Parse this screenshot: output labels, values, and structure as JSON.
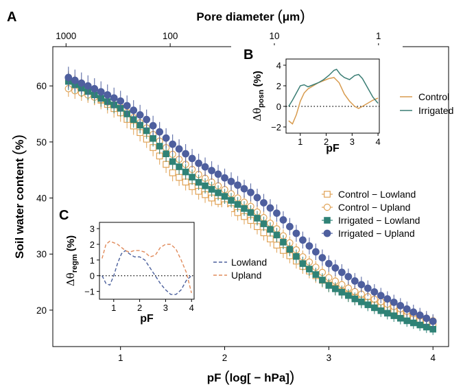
{
  "colors": {
    "control": "#E0A255",
    "irrigated_lowland": "#2F8276",
    "irrigated_upland": "#4E5F9E",
    "control_line": "#D89B4E",
    "irrigated_line": "#3A7D74",
    "lowland_dash": "#4A5F9C",
    "upland_dash": "#E08A5A",
    "zero_line": "#000000"
  },
  "chart_data": [
    {
      "panel": "A",
      "type": "scatter",
      "xlabel_pre": "pF",
      "xlabel_inner": "log[ − hPa]",
      "ylabel_pre": "Soil water content",
      "ylabel_inner": "%",
      "top_xlabel_pre": "Pore diameter",
      "top_xlabel_inner": "μm",
      "xlim": [
        0.35,
        4.15
      ],
      "ylim": [
        13.5,
        67
      ],
      "x_ticks": [
        1,
        2,
        3,
        4
      ],
      "x_tick_labels": [
        "1",
        "2",
        "3",
        "4"
      ],
      "y_ticks": [
        20,
        30,
        40,
        50,
        60
      ],
      "y_tick_labels": [
        "20",
        "30",
        "40",
        "50",
        "60"
      ],
      "top_ticks_pF": [
        0.477,
        1.477,
        2.477,
        3.477
      ],
      "top_tick_labels": [
        "1000",
        "100",
        "10",
        "1"
      ],
      "error_bars": true,
      "legend_position": "right-middle",
      "series": [
        {
          "name": "Control − Lowland",
          "marker": "open-square",
          "x": [
            0.5,
            0.75,
            1.0,
            1.25,
            1.5,
            1.75,
            2.0,
            2.25,
            2.5,
            2.75,
            3.0,
            3.25,
            3.5,
            3.75,
            4.0
          ],
          "y": [
            61.0,
            58.2,
            55.2,
            50.5,
            44.5,
            41.2,
            38.8,
            36.0,
            31.6,
            27.8,
            24.5,
            22.2,
            20.5,
            19.0,
            17.5
          ]
        },
        {
          "name": "Control − Upland",
          "marker": "open-circle",
          "x": [
            0.5,
            0.75,
            1.0,
            1.25,
            1.5,
            1.75,
            2.0,
            2.25,
            2.5,
            2.75,
            3.0,
            3.25,
            3.5,
            3.75,
            4.0
          ],
          "y": [
            59.5,
            58.0,
            56.2,
            52.5,
            47.8,
            44.2,
            41.5,
            38.5,
            34.5,
            29.5,
            25.8,
            23.3,
            21.5,
            19.8,
            18.1
          ]
        },
        {
          "name": "Irrigated − Lowland",
          "marker": "filled-square",
          "x": [
            0.5,
            0.75,
            1.0,
            1.25,
            1.5,
            1.75,
            2.0,
            2.25,
            2.5,
            2.75,
            3.0,
            3.25,
            3.5,
            3.75,
            4.0
          ],
          "y": [
            60.8,
            58.4,
            56.0,
            52.0,
            46.5,
            42.8,
            40.3,
            37.4,
            33.4,
            28.3,
            24.4,
            22.0,
            19.9,
            18.1,
            16.6
          ]
        },
        {
          "name": "Irrigated − Upland",
          "marker": "filled-circle",
          "x": [
            0.5,
            0.75,
            1.0,
            1.25,
            1.5,
            1.75,
            2.0,
            2.25,
            2.5,
            2.75,
            3.0,
            3.25,
            3.5,
            3.75,
            4.0
          ],
          "y": [
            61.5,
            59.5,
            57.3,
            54.0,
            49.6,
            46.2,
            43.6,
            41.0,
            37.3,
            32.5,
            28.3,
            25.2,
            22.6,
            20.2,
            18.0
          ]
        }
      ]
    },
    {
      "panel": "B",
      "type": "line",
      "xlabel": "pF",
      "ylabel_base": "Δθ",
      "ylabel_sub": "posn",
      "ylabel_unit": "(%)",
      "xlim": [
        0.45,
        4.05
      ],
      "ylim": [
        -2.6,
        4.6
      ],
      "x_ticks": [
        1,
        2,
        3,
        4
      ],
      "x_tick_labels": [
        "1",
        "2",
        "3",
        "4"
      ],
      "y_ticks": [
        -2,
        0,
        2,
        4
      ],
      "y_tick_labels": [
        "−2",
        "0",
        "2",
        "4"
      ],
      "reference_line_y": 0,
      "series": [
        {
          "name": "Control",
          "x": [
            0.55,
            0.7,
            0.85,
            1.0,
            1.15,
            1.3,
            1.5,
            1.7,
            1.9,
            2.1,
            2.3,
            2.5,
            2.7,
            2.9,
            3.1,
            3.25,
            3.4,
            3.6,
            3.8,
            4.0
          ],
          "y": [
            -1.4,
            -1.7,
            -0.8,
            0.5,
            1.3,
            1.7,
            2.0,
            2.3,
            2.5,
            2.7,
            2.8,
            2.3,
            1.2,
            0.5,
            0.0,
            -0.2,
            0.0,
            0.3,
            0.6,
            0.8
          ]
        },
        {
          "name": "Irrigated",
          "x": [
            0.55,
            0.7,
            0.85,
            1.0,
            1.15,
            1.3,
            1.5,
            1.7,
            1.9,
            2.1,
            2.3,
            2.4,
            2.55,
            2.7,
            2.9,
            3.1,
            3.25,
            3.4,
            3.6,
            3.8,
            4.0
          ],
          "y": [
            0.0,
            0.6,
            1.3,
            2.0,
            2.1,
            1.9,
            2.1,
            2.3,
            2.6,
            3.0,
            3.5,
            3.6,
            3.1,
            2.8,
            2.6,
            3.0,
            3.1,
            2.7,
            1.8,
            0.9,
            0.3
          ]
        }
      ]
    },
    {
      "panel": "C",
      "type": "line",
      "xlabel": "pF",
      "ylabel_base": "Δθ",
      "ylabel_sub": "regm",
      "ylabel_unit": "(%)",
      "xlim": [
        0.45,
        4.1
      ],
      "ylim": [
        -1.5,
        3.4
      ],
      "x_ticks": [
        1,
        2,
        3,
        4
      ],
      "x_tick_labels": [
        "1",
        "2",
        "3",
        "4"
      ],
      "y_ticks": [
        -1,
        0,
        1,
        2,
        3
      ],
      "y_tick_labels": [
        "−1",
        "0",
        "1",
        "2",
        "3"
      ],
      "reference_line_y": 0,
      "series": [
        {
          "name": "Lowland",
          "dash": true,
          "x": [
            0.55,
            0.7,
            0.85,
            1.0,
            1.15,
            1.3,
            1.45,
            1.6,
            1.8,
            2.0,
            2.2,
            2.4,
            2.6,
            2.8,
            3.0,
            3.2,
            3.4,
            3.6,
            3.8,
            4.0
          ],
          "y": [
            0.0,
            -0.5,
            -0.6,
            0.0,
            0.8,
            1.4,
            1.6,
            1.4,
            1.2,
            1.2,
            1.0,
            0.5,
            0.0,
            -0.5,
            -0.9,
            -1.2,
            -1.2,
            -0.9,
            -0.3,
            0.0
          ]
        },
        {
          "name": "Upland",
          "dash": true,
          "x": [
            0.55,
            0.7,
            0.85,
            1.0,
            1.15,
            1.3,
            1.45,
            1.6,
            1.8,
            2.0,
            2.2,
            2.4,
            2.6,
            2.8,
            3.0,
            3.2,
            3.4,
            3.6,
            3.8,
            4.0
          ],
          "y": [
            1.1,
            2.0,
            2.2,
            2.1,
            2.0,
            1.8,
            1.6,
            1.5,
            1.6,
            1.6,
            1.5,
            1.2,
            1.3,
            1.8,
            2.0,
            2.0,
            1.7,
            1.0,
            0.2,
            -1.1
          ]
        }
      ]
    }
  ]
}
